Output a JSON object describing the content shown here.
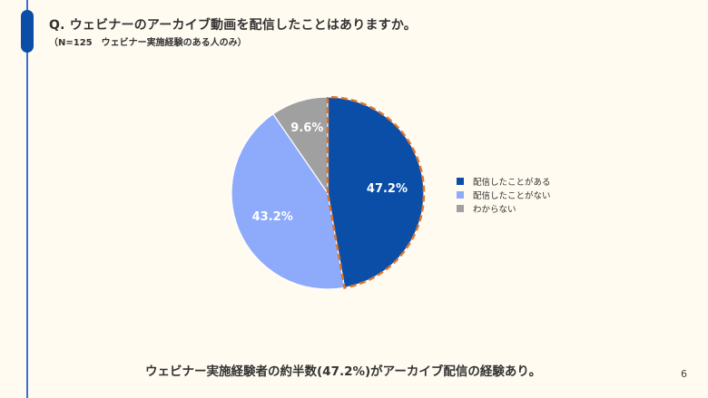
{
  "header": {
    "title": "Q. ウェビナーのアーカイブ動画を配信したことはありますか。",
    "subtitle": "（N=125　ウェビナー実施経験のある人のみ）"
  },
  "chart_data": {
    "type": "pie",
    "title": "Q. ウェビナーのアーカイブ動画を配信したことはありますか。",
    "subtitle": "（N=125　ウェビナー実施経験のある人のみ）",
    "categories": [
      "配信したことがある",
      "配信したことがない",
      "わからない"
    ],
    "values": [
      47.2,
      43.2,
      9.6
    ],
    "labels": [
      "47.2%",
      "43.2%",
      "9.6%"
    ],
    "colors": [
      "#0a4ea8",
      "#8eaafb",
      "#a0a0a0"
    ],
    "highlight": {
      "category": "配信したことがある",
      "style": "dashed-outline",
      "color": "#e0752a"
    },
    "legend_position": "right",
    "start_angle": "12 o'clock, clockwise"
  },
  "legend": {
    "items": [
      {
        "label": "配信したことがある",
        "color": "#0a4ea8"
      },
      {
        "label": "配信したことがない",
        "color": "#8eaafb"
      },
      {
        "label": "わからない",
        "color": "#a0a0a0"
      }
    ]
  },
  "footer": {
    "conclusion": "ウェビナー実施経験者の約半数(47.2%)がアーカイブ配信の経験あり。",
    "page_number": "6"
  }
}
